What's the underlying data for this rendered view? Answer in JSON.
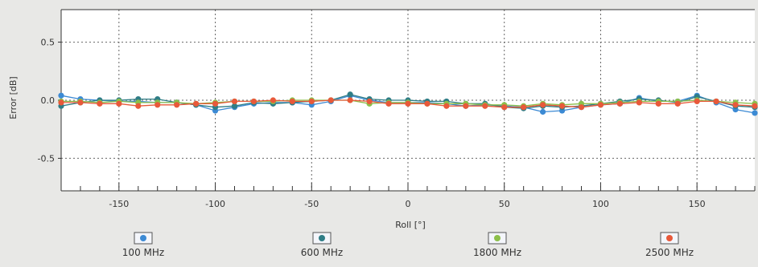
{
  "chart_data": {
    "type": "line",
    "title": "",
    "xlabel": "Roll [°]",
    "ylabel": "Error [dB]",
    "xlim": [
      -180,
      180
    ],
    "ylim": [
      -0.78,
      0.78
    ],
    "x_ticks": [
      -150,
      -100,
      -50,
      0,
      50,
      100,
      150
    ],
    "y_ticks": [
      0.5,
      0.0,
      -0.5
    ],
    "grid": true,
    "legend_position": "bottom",
    "x": [
      -180,
      -170,
      -160,
      -150,
      -140,
      -130,
      -120,
      -110,
      -100,
      -90,
      -80,
      -70,
      -60,
      -50,
      -40,
      -30,
      -20,
      -10,
      0,
      10,
      20,
      30,
      40,
      50,
      60,
      70,
      80,
      90,
      100,
      110,
      120,
      130,
      140,
      150,
      160,
      170,
      180
    ],
    "series": [
      {
        "name": "100 MHz",
        "color": "#3c8ad4",
        "values": [
          0.04,
          0.01,
          0.0,
          -0.01,
          -0.01,
          -0.02,
          -0.02,
          -0.04,
          -0.09,
          -0.06,
          -0.03,
          -0.02,
          -0.02,
          -0.04,
          -0.01,
          0.04,
          0.0,
          -0.02,
          -0.02,
          -0.02,
          -0.03,
          -0.05,
          -0.04,
          -0.05,
          -0.06,
          -0.1,
          -0.09,
          -0.06,
          -0.04,
          -0.03,
          0.02,
          -0.01,
          -0.01,
          0.04,
          -0.02,
          -0.08,
          -0.11
        ]
      },
      {
        "name": "600 MHz",
        "color": "#2f7d86",
        "values": [
          -0.05,
          -0.02,
          0.0,
          0.0,
          0.01,
          0.01,
          -0.02,
          -0.04,
          -0.06,
          -0.05,
          -0.02,
          -0.03,
          -0.02,
          -0.01,
          0.0,
          0.05,
          0.01,
          0.0,
          0.0,
          -0.01,
          -0.01,
          -0.03,
          -0.03,
          -0.06,
          -0.07,
          -0.05,
          -0.06,
          -0.05,
          -0.03,
          -0.01,
          0.01,
          0.0,
          -0.02,
          0.03,
          -0.01,
          -0.05,
          -0.06
        ]
      },
      {
        "name": "1800 MHz",
        "color": "#8cbf4a",
        "values": [
          -0.01,
          -0.01,
          -0.02,
          -0.01,
          -0.02,
          -0.02,
          -0.02,
          -0.03,
          -0.02,
          -0.01,
          -0.01,
          -0.01,
          0.0,
          0.0,
          0.0,
          0.0,
          -0.03,
          -0.02,
          -0.02,
          -0.03,
          -0.03,
          -0.03,
          -0.04,
          -0.04,
          -0.05,
          -0.03,
          -0.04,
          -0.03,
          -0.03,
          -0.02,
          -0.01,
          -0.01,
          -0.01,
          0.0,
          -0.01,
          -0.02,
          -0.03
        ]
      },
      {
        "name": "2500 MHz",
        "color": "#e8593a",
        "values": [
          -0.02,
          -0.02,
          -0.03,
          -0.03,
          -0.05,
          -0.04,
          -0.04,
          -0.03,
          -0.03,
          -0.01,
          -0.01,
          0.0,
          -0.01,
          -0.01,
          0.0,
          0.0,
          -0.01,
          -0.03,
          -0.03,
          -0.03,
          -0.05,
          -0.05,
          -0.05,
          -0.06,
          -0.06,
          -0.04,
          -0.05,
          -0.06,
          -0.04,
          -0.03,
          -0.02,
          -0.03,
          -0.03,
          -0.01,
          -0.01,
          -0.04,
          -0.05
        ]
      }
    ]
  }
}
